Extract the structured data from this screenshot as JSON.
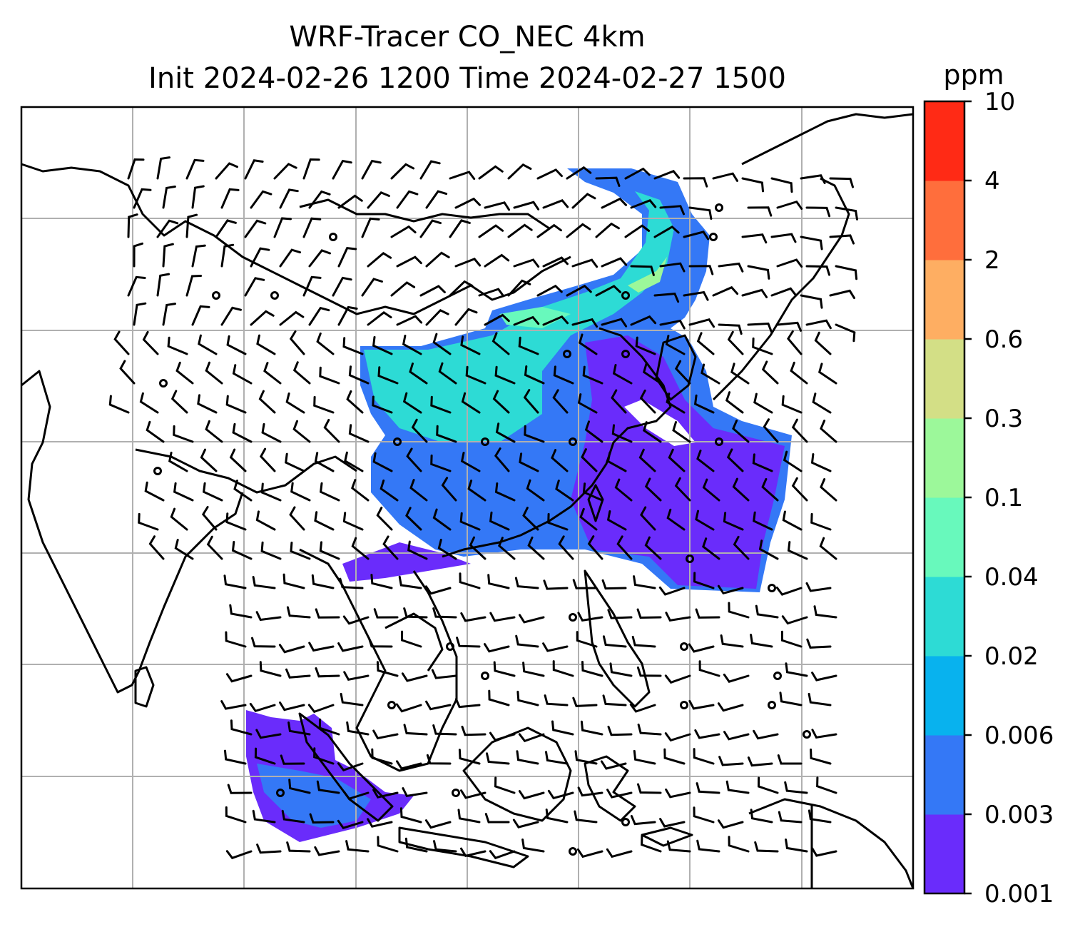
{
  "title": {
    "line1": "WRF-Tracer CO_NEC 4km",
    "line2": "Init 2024-02-26 1200 Time 2024-02-27 1500"
  },
  "colorbar": {
    "unit": "ppm",
    "levels": [
      "0.001",
      "0.003",
      "0.006",
      "0.02",
      "0.04",
      "0.1",
      "0.3",
      "0.6",
      "2",
      "4",
      "10"
    ],
    "colors": [
      "#6a2cfb",
      "#3478f6",
      "#08b2ee",
      "#2ddbd5",
      "#68f9bc",
      "#9cf89a",
      "#d3df86",
      "#feae62",
      "#ff6e3c",
      "#ff2a15"
    ]
  },
  "map": {
    "gridlines": "on",
    "gridline_color": "#b0b0b0",
    "coastline_color": "#000000"
  }
}
